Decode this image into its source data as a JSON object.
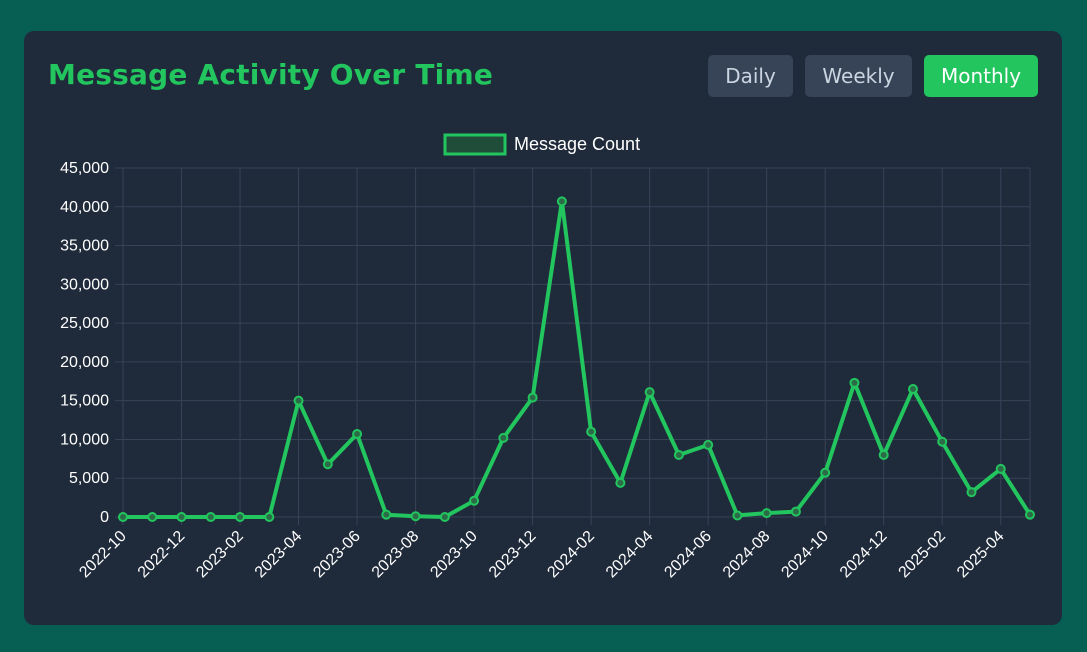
{
  "header": {
    "title": "Message Activity Over Time",
    "buttons": [
      {
        "label": "Daily",
        "active": false
      },
      {
        "label": "Weekly",
        "active": false
      },
      {
        "label": "Monthly",
        "active": true
      }
    ]
  },
  "colors": {
    "accent": "#22c55e",
    "card": "#1f2a3a",
    "page": "#075f53",
    "grid": "#374357"
  },
  "chart_data": {
    "type": "line",
    "legend": [
      "Message Count"
    ],
    "legend_position": "top-center",
    "grid": true,
    "ylim": [
      0,
      45000
    ],
    "yticks": [
      "0",
      "5,000",
      "10,000",
      "15,000",
      "20,000",
      "25,000",
      "30,000",
      "35,000",
      "40,000",
      "45,000"
    ],
    "xticks": [
      "2022-10",
      "2022-12",
      "2023-02",
      "2023-04",
      "2023-06",
      "2023-08",
      "2023-10",
      "2023-12",
      "2024-02",
      "2024-04",
      "2024-06",
      "2024-08",
      "2024-10",
      "2024-12",
      "2025-02",
      "2025-04"
    ],
    "x": [
      "2022-10",
      "2022-11",
      "2022-12",
      "2023-01",
      "2023-02",
      "2023-03",
      "2023-04",
      "2023-05",
      "2023-06",
      "2023-07",
      "2023-08",
      "2023-09",
      "2023-10",
      "2023-11",
      "2023-12",
      "2024-01",
      "2024-02",
      "2024-03",
      "2024-04",
      "2024-05",
      "2024-06",
      "2024-07",
      "2024-08",
      "2024-09",
      "2024-10",
      "2024-11",
      "2024-12",
      "2025-01",
      "2025-02",
      "2025-03",
      "2025-04",
      "2025-05"
    ],
    "series": [
      {
        "name": "Message Count",
        "values": [
          0,
          0,
          0,
          0,
          0,
          0,
          15000,
          6800,
          10700,
          300,
          100,
          0,
          2100,
          10200,
          15400,
          40700,
          11000,
          4400,
          16100,
          8000,
          9300,
          200,
          500,
          700,
          5700,
          17300,
          8000,
          16500,
          9700,
          3200,
          6200,
          300
        ]
      }
    ]
  }
}
